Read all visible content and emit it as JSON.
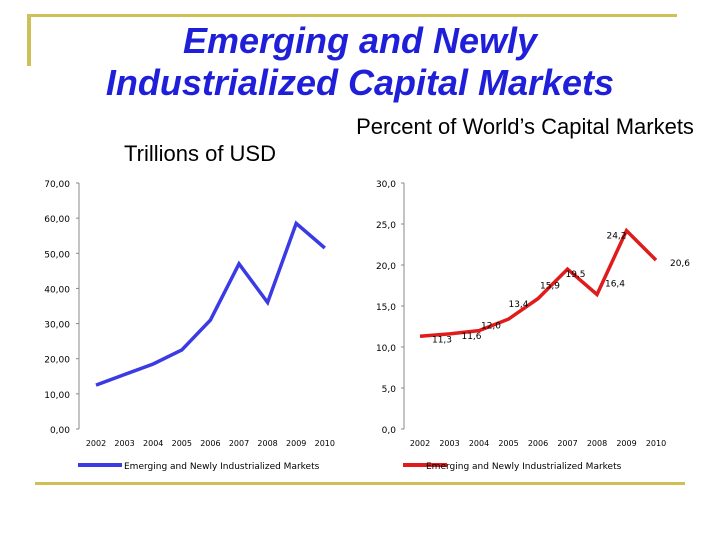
{
  "slide": {
    "title_line1": "Emerging and Newly",
    "title_line2": "Industrialized Capital Markets",
    "title_color": "#1f1fd9",
    "accent_color": "#cfbf57"
  },
  "chart_data": [
    {
      "type": "line",
      "title": "Trillions of USD",
      "xlabel": "",
      "ylabel": "",
      "categories": [
        "2002",
        "2003",
        "2004",
        "2005",
        "2006",
        "2007",
        "2008",
        "2009",
        "2010"
      ],
      "series": [
        {
          "name": "Emerging and Newly Industrialized Markets",
          "color": "#3b3be6",
          "values": [
            12.5,
            15.5,
            18.5,
            22.5,
            31.0,
            47.0,
            36.0,
            58.5,
            51.5
          ]
        }
      ],
      "ylim": [
        0,
        70
      ],
      "yticks": [
        "0,00",
        "10,00",
        "20,00",
        "30,00",
        "40,00",
        "50,00",
        "60,00",
        "70,00"
      ],
      "data_labels": [],
      "grid": false,
      "legend": "bottom"
    },
    {
      "type": "line",
      "title": "Percent of World’s Capital Markets",
      "xlabel": "",
      "ylabel": "",
      "categories": [
        "2002",
        "2003",
        "2004",
        "2005",
        "2006",
        "2007",
        "2008",
        "2009",
        "2010"
      ],
      "series": [
        {
          "name": "Emerging and Newly Industrialized Markets",
          "color": "#e01b1b",
          "values": [
            11.3,
            11.6,
            12.0,
            13.4,
            15.9,
            19.5,
            16.4,
            24.2,
            20.6
          ]
        }
      ],
      "ylim": [
        0,
        30
      ],
      "yticks": [
        "0,0",
        "5,0",
        "10,0",
        "15,0",
        "20,0",
        "25,0",
        "30,0"
      ],
      "data_labels": [
        "11,3",
        "11,6",
        "12,0",
        "13,4",
        "15,9",
        "19,5",
        "16,4",
        "24,2",
        "20,6"
      ],
      "grid": false,
      "legend": "bottom"
    }
  ]
}
